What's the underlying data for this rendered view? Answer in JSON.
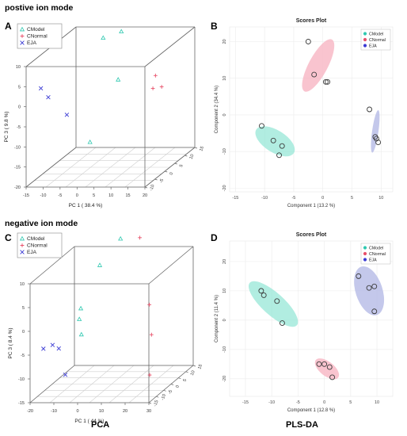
{
  "headings": {
    "top": "postive ion mode",
    "bottom": "negative ion mode"
  },
  "letters": [
    "A",
    "B",
    "C",
    "D"
  ],
  "bottom_labels": {
    "left": "PCA",
    "right": "PLS-DA"
  },
  "colors": {
    "CModel": "#2fc8b0",
    "CNormal": "#e8506a",
    "EJA": "#3b3bd4",
    "ell_model": "#9be8d8",
    "ell_normal": "#f7b4c2",
    "ell_eja": "#b3b8e6"
  },
  "chart_data": [
    {
      "type": "scatter3d",
      "xlabel": "PC 1 ( 38.4 %)",
      "ylabel": "PC 3 ( 9.8 %)",
      "x_ticks": [
        "-15",
        "-10",
        "-5",
        "0",
        "5",
        "10",
        "15",
        "20"
      ],
      "z_ticks": [
        "-20",
        "-15",
        "-10",
        "-5",
        "0",
        "5",
        "10"
      ],
      "depth_ticks": [
        "-10",
        "-5",
        "0",
        "5",
        "10",
        "15"
      ],
      "legend": [
        {
          "name": "CModel",
          "marker": "triangle",
          "color": "#2fc8b0"
        },
        {
          "name": "CNormal",
          "marker": "plus",
          "color": "#e8506a"
        },
        {
          "name": "EJA",
          "marker": "x",
          "color": "#3b3bd4"
        }
      ],
      "series": [
        {
          "name": "CModel",
          "points": [
            [
              6,
              2,
              14
            ],
            [
              3,
              -2,
              14
            ],
            [
              8,
              -3,
              4
            ],
            [
              5,
              -12,
              -8
            ]
          ]
        },
        {
          "name": "CNormal",
          "points": [
            [
              19,
              -3,
              5
            ],
            [
              20,
              -6,
              3
            ],
            [
              22,
              -5,
              3
            ]
          ]
        },
        {
          "name": "EJA",
          "points": [
            [
              -13,
              -6,
              3
            ],
            [
              -12,
              -4,
              0
            ],
            [
              -3,
              -10,
              -2
            ]
          ]
        }
      ]
    },
    {
      "type": "scatter",
      "title": "Scores Plot",
      "xlabel": "Component 1 (13.2 %)",
      "ylabel": "Component 2 (34.4 %)",
      "xlim": [
        -16,
        12
      ],
      "ylim": [
        -21,
        24
      ],
      "x_ticks": [
        -15,
        -10,
        -5,
        0,
        5,
        10
      ],
      "y_ticks": [
        -20,
        -10,
        0,
        10,
        20
      ],
      "legend": [
        "CModel",
        "CNormal",
        "EJA"
      ],
      "series": [
        {
          "name": "CModel",
          "x": [
            -10.5,
            -8.5,
            -7,
            -7.5
          ],
          "y": [
            -3,
            -7,
            -8.5,
            -11
          ]
        },
        {
          "name": "CNormal",
          "x": [
            -2.5,
            -1.5,
            0.5,
            0.8
          ],
          "y": [
            20,
            11,
            9,
            9
          ]
        },
        {
          "name": "EJA",
          "x": [
            8,
            9,
            9.2,
            9.5
          ],
          "y": [
            1.5,
            -6,
            -6.5,
            -7.5
          ]
        }
      ]
    },
    {
      "type": "scatter3d",
      "xlabel": "PC 1 ( 44 %)",
      "ylabel": "PC 3 ( 8.4 %)",
      "x_ticks": [
        "-20",
        "-10",
        "0",
        "10",
        "20",
        "30"
      ],
      "z_ticks": [
        "-15",
        "-10",
        "-5",
        "0",
        "5",
        "10"
      ],
      "depth_ticks": [
        "-15",
        "-10",
        "-5",
        "0",
        "5",
        "10",
        "15"
      ],
      "legend": [
        {
          "name": "CModel",
          "marker": "triangle",
          "color": "#2fc8b0"
        },
        {
          "name": "CNormal",
          "marker": "plus",
          "color": "#e8506a"
        },
        {
          "name": "EJA",
          "marker": "x",
          "color": "#3b3bd4"
        }
      ],
      "series": [
        {
          "name": "CModel",
          "points": [
            [
              5,
              6,
              14
            ],
            [
              0,
              0,
              10
            ],
            [
              -3,
              -8,
              3
            ],
            [
              -3,
              -9,
              1
            ],
            [
              -4,
              -6,
              -3
            ]
          ]
        },
        {
          "name": "CNormal",
          "points": [
            [
              15,
              3,
              15
            ],
            [
              24,
              -5,
              3
            ],
            [
              28,
              -10,
              -2
            ],
            [
              26,
              -8,
              -11
            ]
          ]
        },
        {
          "name": "EJA",
          "points": [
            [
              -20,
              -6,
              -6
            ],
            [
              -18,
              -3,
              -6
            ],
            [
              -16,
              -2,
              -7
            ],
            [
              -12,
              -4,
              -12
            ]
          ]
        }
      ]
    },
    {
      "type": "scatter",
      "title": "Scores Plot",
      "xlabel": "Component 1 (12.8 %)",
      "ylabel": "Component 2 (11.4 %)",
      "xlim": [
        -18,
        13
      ],
      "ylim": [
        -26,
        27
      ],
      "x_ticks": [
        -15,
        -10,
        -5,
        0,
        5,
        10
      ],
      "y_ticks": [
        -20,
        -10,
        0,
        10,
        20
      ],
      "legend": [
        "CModel",
        "CNormal",
        "EJA"
      ],
      "series": [
        {
          "name": "CModel",
          "x": [
            -12,
            -11.5,
            -9,
            -8
          ],
          "y": [
            10,
            8.5,
            6.5,
            -1
          ]
        },
        {
          "name": "CNormal",
          "x": [
            -1,
            0,
            1,
            1.5
          ],
          "y": [
            -15,
            -15,
            -16,
            -19.5
          ]
        },
        {
          "name": "EJA",
          "x": [
            6.5,
            8.5,
            9.5,
            9.5
          ],
          "y": [
            15,
            11,
            11.5,
            3
          ]
        }
      ]
    }
  ]
}
